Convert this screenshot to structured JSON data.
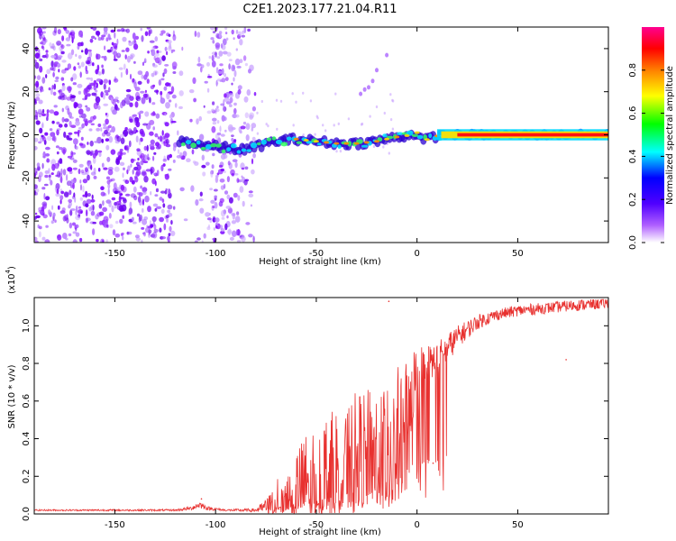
{
  "title": "C2E1.2023.177.21.04.R11",
  "chart_data": [
    {
      "type": "heatmap",
      "xlabel": "Height of straight line (km)",
      "ylabel": "Frequency (Hz)",
      "xlim": [
        -190,
        95
      ],
      "ylim": [
        -50,
        50
      ],
      "xticks": [
        -150,
        -100,
        -50,
        0,
        50
      ],
      "xtick_labels": [
        "-150",
        "-100",
        "-50",
        "0",
        "50"
      ],
      "yticks": [
        -40,
        -20,
        0,
        20,
        40
      ],
      "ytick_labels": [
        "-40",
        "-20",
        "0",
        "20",
        "40"
      ],
      "ridge_frequency_hz": [
        [
          -115,
          -3
        ],
        [
          -105,
          -5
        ],
        [
          -95,
          -6
        ],
        [
          -85,
          -7
        ],
        [
          -78,
          -5
        ],
        [
          -70,
          -3
        ],
        [
          -60,
          -2
        ],
        [
          -50,
          -3
        ],
        [
          -40,
          -4
        ],
        [
          -30,
          -4
        ],
        [
          -20,
          -3
        ],
        [
          -10,
          -1
        ],
        [
          -2,
          0
        ],
        [
          0,
          1
        ],
        [
          3,
          -3
        ],
        [
          8,
          -1
        ],
        [
          12,
          0
        ],
        [
          20,
          0
        ],
        [
          40,
          0
        ],
        [
          60,
          0
        ],
        [
          80,
          0
        ],
        [
          95,
          0
        ]
      ],
      "noise_region_km": [
        -190,
        -80
      ],
      "colorbar": {
        "label": "Normalized spectral amplitude",
        "range": [
          0,
          1
        ],
        "ticks": [
          0.0,
          0.2,
          0.4,
          0.6,
          0.8
        ],
        "tick_labels": [
          "0.0",
          "0.2",
          "0.4",
          "0.6",
          "0.8"
        ],
        "colors": [
          "#ffffff",
          "#7a00ff",
          "#0000ff",
          "#00ffff",
          "#00ff00",
          "#ffff00",
          "#ff8000",
          "#ff0000",
          "#ff0090"
        ]
      }
    },
    {
      "type": "line",
      "xlabel": "Height of straight line (km)",
      "ylabel": "SNR (10 * v/v)",
      "scale_label": "(x10",
      "scale_exponent": "4",
      "scale_close": ")",
      "xlim": [
        -190,
        95
      ],
      "ylim": [
        0,
        1.15
      ],
      "xticks": [
        -150,
        -100,
        -50,
        0,
        50
      ],
      "xtick_labels": [
        "-150",
        "-100",
        "-50",
        "0",
        "50"
      ],
      "yticks": [
        0.0,
        0.2,
        0.4,
        0.6,
        0.8,
        1.0
      ],
      "ytick_labels": [
        "0.0",
        "0.2",
        "0.4",
        "0.6",
        "0.8",
        "1.0"
      ],
      "color": "#e8312f",
      "envelope": {
        "x": [
          -190,
          -120,
          -112,
          -108,
          -104,
          -95,
          -80,
          -74,
          -70,
          -62,
          -55,
          -48,
          -40,
          -30,
          -20,
          -12,
          -5,
          0,
          5,
          10,
          15,
          20,
          25,
          30,
          40,
          50,
          60,
          70,
          80,
          95
        ],
        "base": [
          0.02,
          0.02,
          0.03,
          0.05,
          0.03,
          0.02,
          0.02,
          0.04,
          0.08,
          0.12,
          0.16,
          0.2,
          0.25,
          0.3,
          0.33,
          0.35,
          0.6,
          0.72,
          0.78,
          0.82,
          0.88,
          0.94,
          0.98,
          1.02,
          1.06,
          1.08,
          1.09,
          1.1,
          1.11,
          1.12
        ],
        "amp": [
          0.004,
          0.005,
          0.01,
          0.02,
          0.01,
          0.005,
          0.01,
          0.05,
          0.1,
          0.18,
          0.28,
          0.3,
          0.32,
          0.35,
          0.35,
          0.4,
          0.25,
          0.2,
          0.12,
          0.1,
          0.08,
          0.06,
          0.05,
          0.04,
          0.03,
          0.03,
          0.03,
          0.03,
          0.03,
          0.03
        ]
      },
      "notable_points": [
        {
          "x": -14,
          "y": 1.13
        },
        {
          "x": -107,
          "y": 0.08
        },
        {
          "x": 8,
          "y": 0.27
        },
        {
          "x": 74,
          "y": 0.82
        }
      ]
    }
  ]
}
